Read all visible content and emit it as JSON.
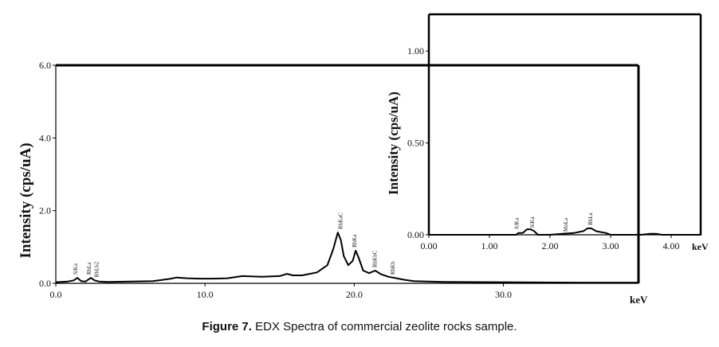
{
  "caption": {
    "label": "Figure 7.",
    "text": "EDX Spectra of commercial zeolite rocks sample."
  },
  "chart_data": [
    {
      "type": "line",
      "name": "main",
      "xlabel": "keV",
      "ylabel": "Intensity (cps/uA)",
      "xlim": [
        0,
        39
      ],
      "ylim": [
        0,
        6.0
      ],
      "xticks": [
        "0.0",
        "10.0",
        "20.0",
        "30.0"
      ],
      "xtick_values": [
        0,
        10,
        20,
        30
      ],
      "yticks": [
        "0.0",
        "2.0",
        "4.0",
        "6.0"
      ],
      "ytick_values": [
        0,
        2,
        4,
        6
      ],
      "series": [
        {
          "x": [
            0.0,
            0.8,
            1.2,
            1.45,
            1.7,
            2.0,
            2.35,
            2.6,
            2.9,
            3.5,
            5.0,
            6.5,
            7.6,
            8.1,
            8.8,
            9.6,
            10.5,
            11.5,
            12.5,
            13.8,
            15.0,
            15.5,
            15.9,
            16.5,
            17.5,
            18.2,
            18.6,
            18.9,
            19.1,
            19.3,
            19.6,
            19.9,
            20.1,
            20.3,
            20.6,
            21.0,
            21.4,
            21.8,
            22.3,
            22.7,
            23.3,
            24.0,
            26.0,
            30.0,
            35.0,
            39.0
          ],
          "y": [
            0.03,
            0.05,
            0.08,
            0.15,
            0.06,
            0.05,
            0.15,
            0.08,
            0.05,
            0.04,
            0.05,
            0.06,
            0.12,
            0.16,
            0.14,
            0.13,
            0.13,
            0.14,
            0.2,
            0.18,
            0.2,
            0.26,
            0.22,
            0.22,
            0.3,
            0.5,
            0.95,
            1.4,
            1.2,
            0.75,
            0.5,
            0.62,
            0.9,
            0.7,
            0.35,
            0.28,
            0.35,
            0.25,
            0.18,
            0.15,
            0.1,
            0.06,
            0.04,
            0.03,
            0.02,
            0.02
          ]
        }
      ],
      "annotations": [
        {
          "text": "SiKa",
          "x": 1.45
        },
        {
          "text": "RhLa",
          "x": 2.35
        },
        {
          "text": "RhLb2",
          "x": 2.85
        },
        {
          "text": "RhKaC",
          "x": 19.2
        },
        {
          "text": "RhKa",
          "x": 20.15
        },
        {
          "text": "RhKbC",
          "x": 21.5
        },
        {
          "text": "RhKb",
          "x": 22.7
        }
      ]
    },
    {
      "type": "line",
      "name": "inset",
      "xlabel": "keV",
      "ylabel": "Intensity (cps/uA)",
      "xlim": [
        0,
        4.5
      ],
      "ylim": [
        0,
        1.2
      ],
      "xticks": [
        "0.00",
        "1.00",
        "2.00",
        "3.00",
        "4.00"
      ],
      "xtick_values": [
        0,
        1,
        2,
        3,
        4
      ],
      "yticks": [
        "0.00",
        "0.50",
        "1.00"
      ],
      "ytick_values": [
        0,
        0.5,
        1.0
      ],
      "series": [
        {
          "x": [
            0.0,
            1.3,
            1.44,
            1.48,
            1.55,
            1.62,
            1.68,
            1.74,
            1.8,
            2.0,
            2.2,
            2.4,
            2.55,
            2.62,
            2.68,
            2.76,
            2.83,
            2.92,
            3.0,
            3.5,
            3.65,
            3.75,
            3.85,
            4.5
          ],
          "y": [
            0.0,
            0.0,
            0.0,
            0.01,
            0.01,
            0.03,
            0.03,
            0.02,
            0.0,
            0.0,
            0.005,
            0.01,
            0.02,
            0.035,
            0.035,
            0.02,
            0.015,
            0.01,
            0.0,
            0.0,
            0.005,
            0.005,
            0.0,
            0.0
          ]
        }
      ],
      "annotations": [
        {
          "text": "AlKa",
          "x": 1.48
        },
        {
          "text": "SiKa",
          "x": 1.74
        },
        {
          "text": "MoLa",
          "x": 2.29
        },
        {
          "text": "RhLa",
          "x": 2.7
        }
      ]
    }
  ]
}
